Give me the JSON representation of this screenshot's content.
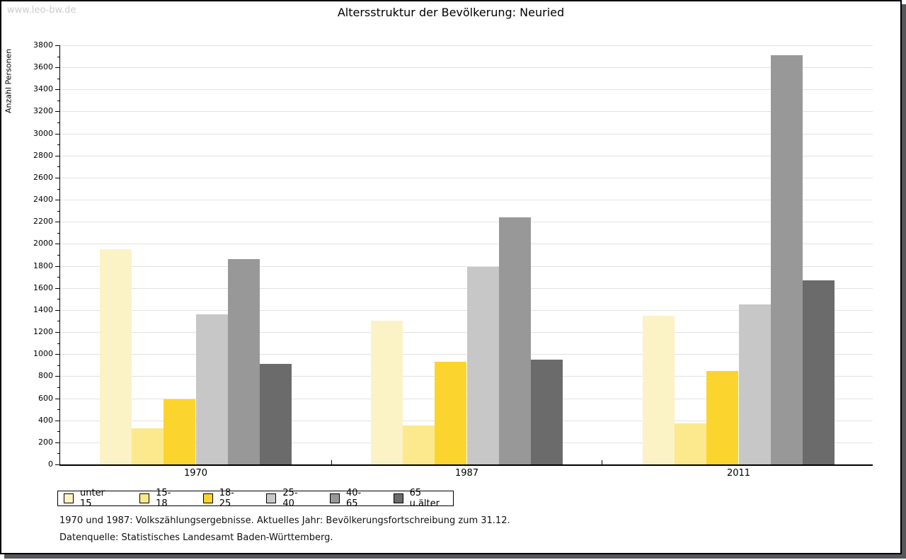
{
  "watermark": "www.leo-bw.de",
  "title": "Altersstruktur der Bevölkerung: Neuried",
  "chart_data": {
    "type": "bar",
    "title": "Altersstruktur der Bevölkerung: Neuried",
    "xlabel": "",
    "ylabel": "Anzahl Personen",
    "categories": [
      "1970",
      "1987",
      "2011"
    ],
    "series": [
      {
        "name": "unter 15",
        "color": "#FBF3C6",
        "values": [
          1950,
          1300,
          1350
        ]
      },
      {
        "name": "15-18",
        "color": "#FCE98D",
        "values": [
          330,
          350,
          370
        ]
      },
      {
        "name": "18-25",
        "color": "#FCD42E",
        "values": [
          590,
          930,
          850
        ]
      },
      {
        "name": "25-40",
        "color": "#C7C7C7",
        "values": [
          1360,
          1790,
          1450
        ]
      },
      {
        "name": "40-65",
        "color": "#989898",
        "values": [
          1860,
          2240,
          3710
        ]
      },
      {
        "name": "65 u.älter",
        "color": "#6B6B6B",
        "values": [
          910,
          950,
          1670
        ]
      }
    ],
    "ylim": [
      0,
      3800
    ],
    "ytick_step": 200,
    "minor_tick_step": 100,
    "grid": true,
    "legend_position": "bottom-left"
  },
  "footnotes": [
    "1970 und 1987: Volkszählungsergebnisse. Aktuelles Jahr: Bevölkerungsfortschreibung zum 31.12.",
    "Datenquelle: Statistisches Landesamt Baden-Württemberg."
  ]
}
